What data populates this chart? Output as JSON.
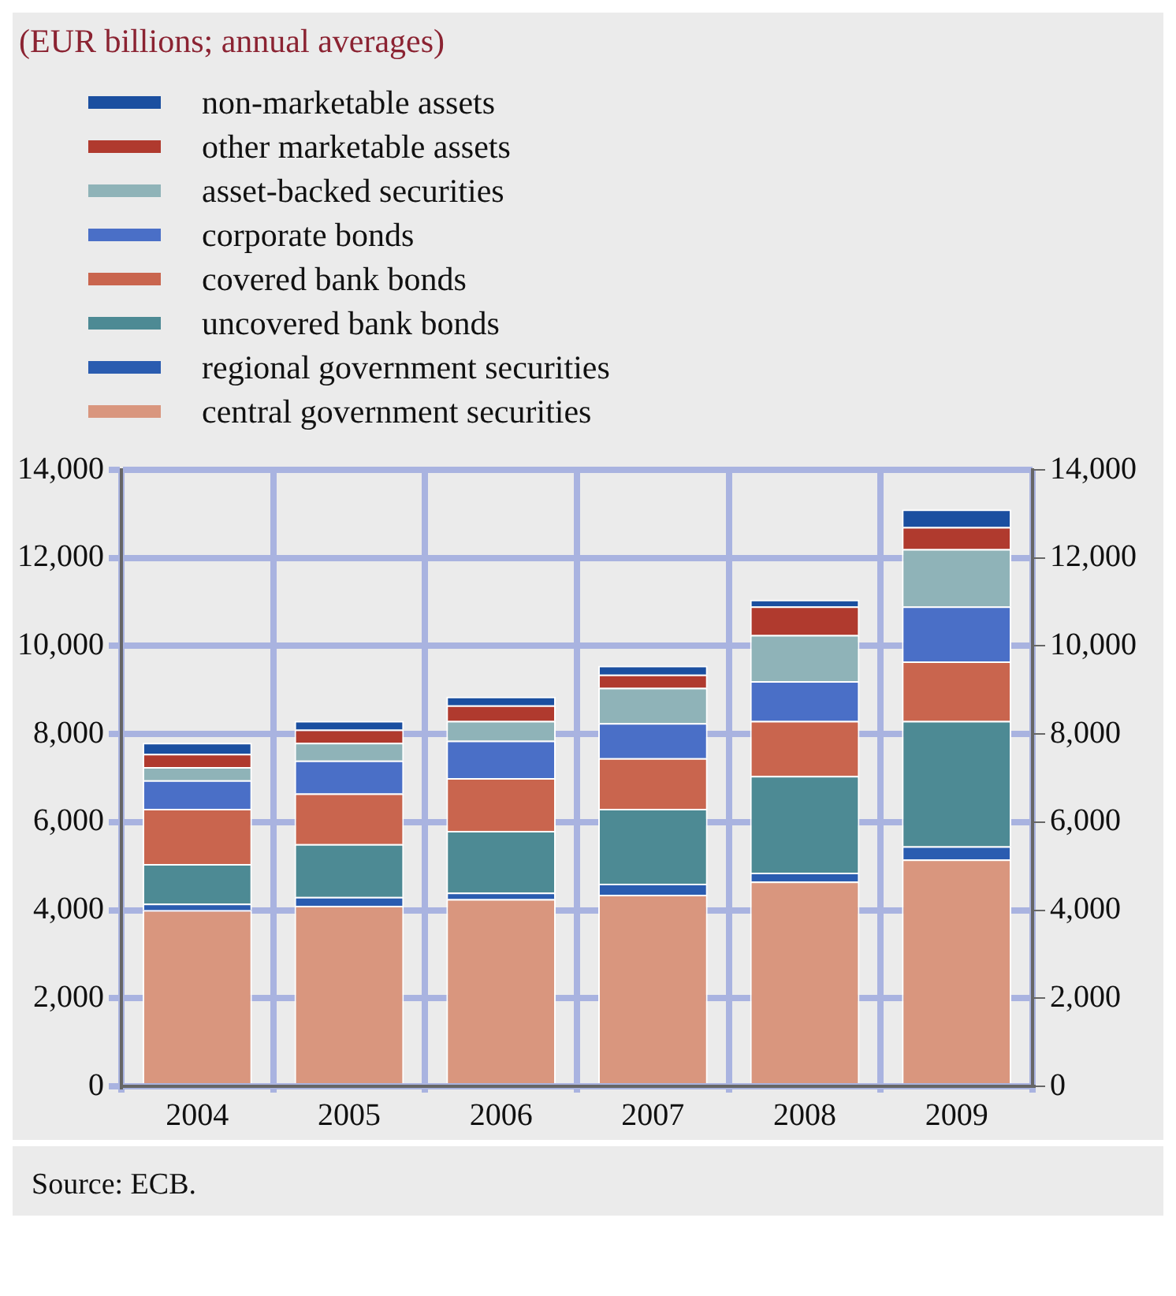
{
  "chart_data": {
    "type": "bar",
    "title": "(EUR billions; annual averages)",
    "categories": [
      "2004",
      "2005",
      "2006",
      "2007",
      "2008",
      "2009"
    ],
    "stacked": true,
    "series": [
      {
        "name": "central government securities",
        "color": "#d9967e",
        "values": [
          4000,
          4100,
          4250,
          4350,
          4650,
          5150
        ]
      },
      {
        "name": "regional government securities",
        "color": "#2a5cb0",
        "values": [
          150,
          200,
          150,
          250,
          200,
          300
        ]
      },
      {
        "name": "uncovered bank bonds",
        "color": "#4d8a94",
        "values": [
          900,
          1200,
          1400,
          1700,
          2200,
          2850
        ]
      },
      {
        "name": "covered bank bonds",
        "color": "#c9654e",
        "values": [
          1250,
          1150,
          1200,
          1150,
          1250,
          1350
        ]
      },
      {
        "name": "corporate bonds",
        "color": "#4a6fc7",
        "values": [
          650,
          750,
          850,
          800,
          900,
          1250
        ]
      },
      {
        "name": "asset-backed securities",
        "color": "#8fb3b8",
        "values": [
          300,
          400,
          450,
          800,
          1050,
          1300
        ]
      },
      {
        "name": "other marketable assets",
        "color": "#b03a2e",
        "values": [
          300,
          300,
          350,
          300,
          650,
          500
        ]
      },
      {
        "name": "non-marketable assets",
        "color": "#1b4fa0",
        "values": [
          250,
          200,
          200,
          200,
          150,
          400
        ]
      }
    ],
    "ylim": [
      0,
      14000
    ],
    "yticks": [
      0,
      {
        "value": 2000,
        "label": "2,000"
      },
      {
        "value": 4000,
        "label": "4,000"
      },
      {
        "value": 6000,
        "label": "6,000"
      },
      {
        "value": 8000,
        "label": "8,000"
      },
      {
        "value": 10000,
        "label": "10,000"
      },
      {
        "value": 12000,
        "label": "12,000"
      },
      {
        "value": 14000,
        "label": "14,000"
      }
    ],
    "y2lim": [
      0,
      14000
    ],
    "y2ticks": [
      0,
      {
        "value": 2000,
        "label": "2,000"
      },
      {
        "value": 4000,
        "label": "4,000"
      },
      {
        "value": 6000,
        "label": "6,000"
      },
      {
        "value": 8000,
        "label": "8,000"
      },
      {
        "value": 10000,
        "label": "10,000"
      },
      {
        "value": 12000,
        "label": "12,000"
      },
      {
        "value": 14000,
        "label": "14,000"
      }
    ],
    "grid": true,
    "legend": "top left",
    "annotations": [
      "Source: ECB."
    ]
  }
}
